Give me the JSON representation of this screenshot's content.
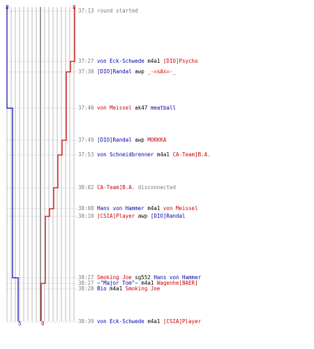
{
  "colors": {
    "team_a": "#0000aa",
    "team_b": "#cc0000",
    "grid": "#b8b8b8",
    "center": "#707070",
    "time": "#7a7a7a"
  },
  "counts": {
    "team_a_start": "8",
    "team_b_start": "8",
    "team_a_end": "5",
    "team_b_end": "0"
  },
  "events": [
    {
      "time": "37:13",
      "parts": [
        {
          "text": "round started",
          "c": "gray"
        }
      ]
    },
    {
      "time": "37:27",
      "parts": [
        {
          "text": "von Eck-Schwede",
          "c": "blue"
        },
        {
          "text": " m4a1 ",
          "c": "black"
        },
        {
          "text": "[DIO]Psycho",
          "c": "red"
        }
      ]
    },
    {
      "time": "37:30",
      "parts": [
        {
          "text": "[DIO]Randal",
          "c": "blue"
        },
        {
          "text": " awp ",
          "c": "black"
        },
        {
          "text": "_-=sAs=-_",
          "c": "red"
        }
      ]
    },
    {
      "time": "37:40",
      "parts": [
        {
          "text": "von Meissel",
          "c": "red"
        },
        {
          "text": " ak47 ",
          "c": "black"
        },
        {
          "text": "meatball",
          "c": "blue"
        }
      ]
    },
    {
      "time": "37:49",
      "parts": [
        {
          "text": "[DIO]Randal",
          "c": "blue"
        },
        {
          "text": " awp ",
          "c": "black"
        },
        {
          "text": "MORKKA",
          "c": "red"
        }
      ]
    },
    {
      "time": "37:53",
      "parts": [
        {
          "text": "von Schneidbrenner",
          "c": "blue"
        },
        {
          "text": " m4a1 ",
          "c": "black"
        },
        {
          "text": "CA-Team]B.A.",
          "c": "red"
        }
      ]
    },
    {
      "time": "38:02",
      "parts": [
        {
          "text": "CA-Team]B.A.",
          "c": "red"
        },
        {
          "text": " disconnected",
          "c": "gray"
        }
      ]
    },
    {
      "time": "38:08",
      "parts": [
        {
          "text": "Hans von Hammer",
          "c": "blue"
        },
        {
          "text": " m4a1 ",
          "c": "black"
        },
        {
          "text": "von Meissel",
          "c": "red"
        }
      ]
    },
    {
      "time": "38:10",
      "parts": [
        {
          "text": "[CSIA]Player",
          "c": "red"
        },
        {
          "text": " awp ",
          "c": "black"
        },
        {
          "text": "[DIO]Randal",
          "c": "blue"
        }
      ]
    },
    {
      "time": "38:27",
      "parts": [
        {
          "text": "Smoking Joe",
          "c": "red"
        },
        {
          "text": " sg552 ",
          "c": "black"
        },
        {
          "text": "Hans von Hammer",
          "c": "blue"
        }
      ]
    },
    {
      "time": "38:27",
      "parts": [
        {
          "text": "~\"Major Tom\"~",
          "c": "blue"
        },
        {
          "text": " m4a1 ",
          "c": "black"
        },
        {
          "text": "Wagenhe[BAER]",
          "c": "red"
        }
      ]
    },
    {
      "time": "38:28",
      "parts": [
        {
          "text": "Bio",
          "c": "blue"
        },
        {
          "text": " m4a1 ",
          "c": "black"
        },
        {
          "text": "Smoking Joe",
          "c": "red"
        }
      ]
    },
    {
      "time": "38:39",
      "parts": [
        {
          "text": "von Eck-Schwede",
          "c": "blue"
        },
        {
          "text": " m4a1 ",
          "c": "black"
        },
        {
          "text": "[CSIA]Player",
          "c": "red"
        }
      ]
    }
  ]
}
